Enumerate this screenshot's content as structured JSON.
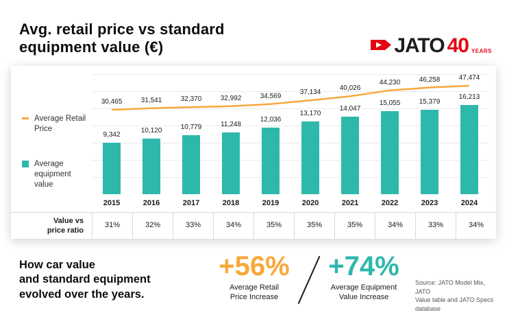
{
  "header": {
    "title_line1": "Avg. retail price vs standard",
    "title_line2": "equipment value (€)",
    "logo": {
      "brand": "JATO",
      "anniversary_number": "40",
      "anniversary_label": "YEARS",
      "brand_red": "#e30613"
    }
  },
  "legend": {
    "retail": "Average Retail Price",
    "equipment": "Average equipment value"
  },
  "chart_data": {
    "type": "bar",
    "categories": [
      "2015",
      "2016",
      "2017",
      "2018",
      "2019",
      "2020",
      "2021",
      "2022",
      "2023",
      "2024"
    ],
    "series": [
      {
        "name": "Average Retail Price",
        "type": "line",
        "color": "#f7a83b",
        "values": [
          30465,
          31541,
          32370,
          32992,
          34569,
          37134,
          40026,
          44230,
          46258,
          47474
        ]
      },
      {
        "name": "Average equipment value",
        "type": "bar",
        "color": "#2eb8ac",
        "values": [
          9342,
          10120,
          10779,
          11248,
          12036,
          13170,
          14047,
          15055,
          15379,
          16213
        ]
      }
    ],
    "ratio_label_lines": [
      "Value vs",
      "price ratio"
    ],
    "ratio_values": [
      "31%",
      "32%",
      "33%",
      "34%",
      "35%",
      "35%",
      "35%",
      "34%",
      "33%",
      "34%"
    ],
    "grid": "horizontal",
    "legend_position": "left"
  },
  "footer": {
    "headline_lines": [
      "How car value",
      "and standard equipment",
      "evolved over the years."
    ],
    "divider": "/",
    "stats": [
      {
        "value": "+56%",
        "color": "#f7a83b",
        "caption_lines": [
          "Average Retail",
          "Price Increase"
        ]
      },
      {
        "value": "+74%",
        "color": "#2eb8ac",
        "caption_lines": [
          "Average Equipment",
          "Value Increase"
        ]
      }
    ],
    "source_lines": [
      "Source: JATO Model Mix, JATO",
      "Value table and JATO Specs",
      "database"
    ]
  }
}
